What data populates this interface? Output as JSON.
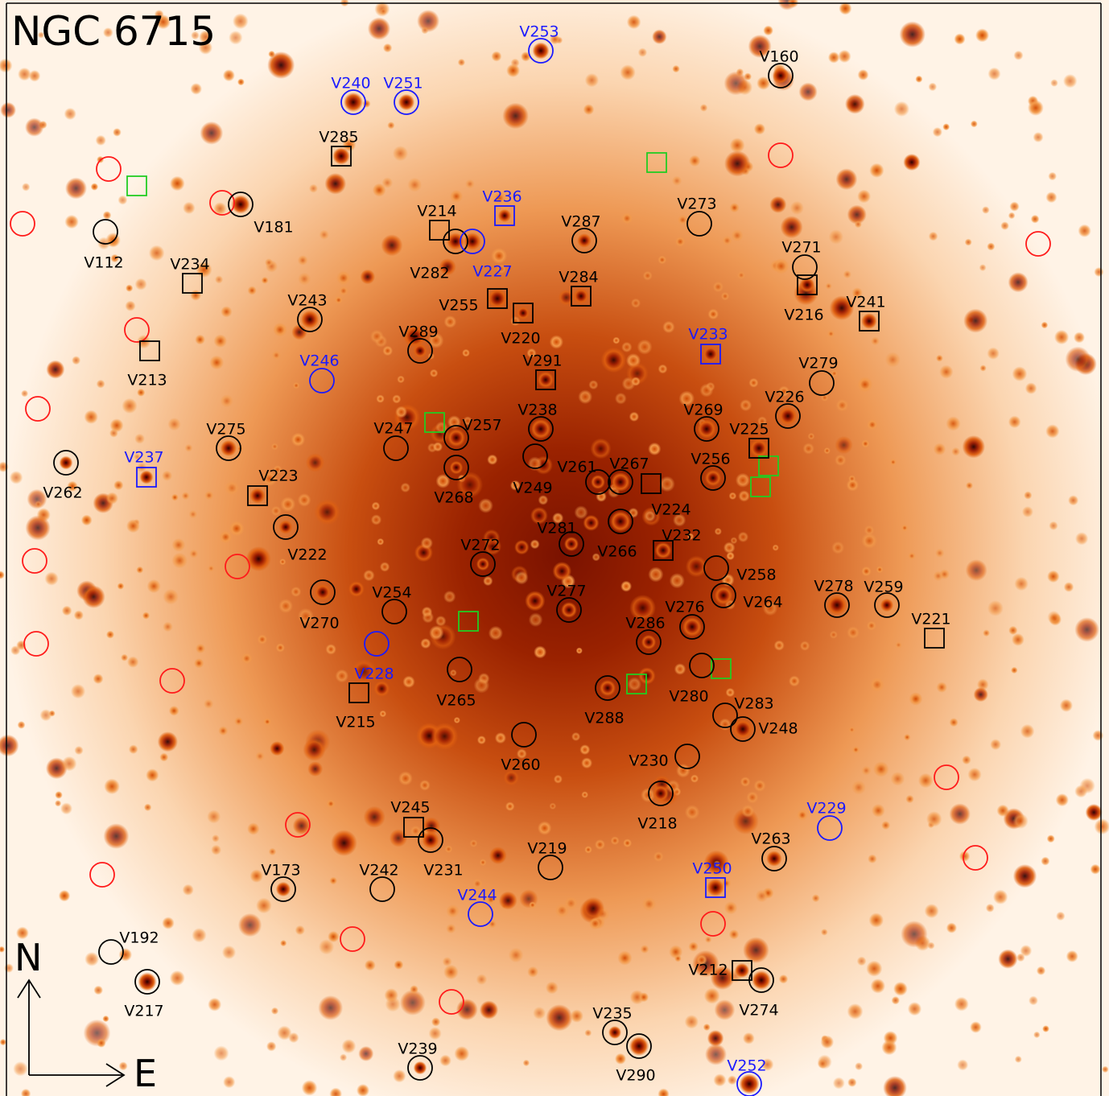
{
  "title": "NGC 6715",
  "compass": {
    "north": "N",
    "east": "E"
  },
  "colors": {
    "black": "#000000",
    "blue": "#1a1aff",
    "red": "#ff1a1a",
    "green": "#22cc22",
    "field_background": "#fff3e6",
    "core_color": "#8a1800",
    "star_color": "#c83a00"
  },
  "variables": [
    {
      "name": "V253",
      "color": "blue",
      "marker": "circle"
    },
    {
      "name": "V160",
      "color": "black",
      "marker": "circle"
    },
    {
      "name": "V240",
      "color": "blue",
      "marker": "circle"
    },
    {
      "name": "V251",
      "color": "blue",
      "marker": "circle"
    },
    {
      "name": "V285",
      "color": "black",
      "marker": "square"
    },
    {
      "name": "V236",
      "color": "blue",
      "marker": "square"
    },
    {
      "name": "V214",
      "color": "black",
      "marker": "square"
    },
    {
      "name": "V181",
      "color": "black",
      "marker": "circle"
    },
    {
      "name": "V273",
      "color": "black",
      "marker": "circle"
    },
    {
      "name": "V287",
      "color": "black",
      "marker": "circle"
    },
    {
      "name": "V112",
      "color": "black",
      "marker": "circle"
    },
    {
      "name": "V282",
      "color": "black",
      "marker": "circle"
    },
    {
      "name": "V227",
      "color": "blue",
      "marker": "circle"
    },
    {
      "name": "V271",
      "color": "black",
      "marker": "circle"
    },
    {
      "name": "V234",
      "color": "black",
      "marker": "square"
    },
    {
      "name": "V284",
      "color": "black",
      "marker": "square"
    },
    {
      "name": "V216",
      "color": "black",
      "marker": "square"
    },
    {
      "name": "V243",
      "color": "black",
      "marker": "circle"
    },
    {
      "name": "V255",
      "color": "black",
      "marker": "square"
    },
    {
      "name": "V241",
      "color": "black",
      "marker": "square"
    },
    {
      "name": "V220",
      "color": "black",
      "marker": "square"
    },
    {
      "name": "V289",
      "color": "black",
      "marker": "circle"
    },
    {
      "name": "V233",
      "color": "blue",
      "marker": "square"
    },
    {
      "name": "V213",
      "color": "black",
      "marker": "square"
    },
    {
      "name": "V246",
      "color": "blue",
      "marker": "circle"
    },
    {
      "name": "V291",
      "color": "black",
      "marker": "square"
    },
    {
      "name": "V279",
      "color": "black",
      "marker": "circle"
    },
    {
      "name": "V226",
      "color": "black",
      "marker": "circle"
    },
    {
      "name": "V238",
      "color": "black",
      "marker": "circle"
    },
    {
      "name": "V269",
      "color": "black",
      "marker": "circle"
    },
    {
      "name": "V275",
      "color": "black",
      "marker": "circle"
    },
    {
      "name": "V247",
      "color": "black",
      "marker": "circle"
    },
    {
      "name": "V257",
      "color": "black",
      "marker": "circle"
    },
    {
      "name": "V225",
      "color": "black",
      "marker": "square"
    },
    {
      "name": "V237",
      "color": "blue",
      "marker": "square"
    },
    {
      "name": "V249",
      "color": "black",
      "marker": "circle"
    },
    {
      "name": "V261",
      "color": "black",
      "marker": "circle"
    },
    {
      "name": "V267",
      "color": "black",
      "marker": "circle"
    },
    {
      "name": "V256",
      "color": "black",
      "marker": "circle"
    },
    {
      "name": "V262",
      "color": "black",
      "marker": "circle"
    },
    {
      "name": "V223",
      "color": "black",
      "marker": "square"
    },
    {
      "name": "V268",
      "color": "black",
      "marker": "circle"
    },
    {
      "name": "V224",
      "color": "black",
      "marker": "square"
    },
    {
      "name": "V281",
      "color": "black",
      "marker": "circle"
    },
    {
      "name": "V266",
      "color": "black",
      "marker": "circle"
    },
    {
      "name": "V232",
      "color": "black",
      "marker": "square"
    },
    {
      "name": "V222",
      "color": "black",
      "marker": "circle"
    },
    {
      "name": "V272",
      "color": "black",
      "marker": "circle"
    },
    {
      "name": "V258",
      "color": "black",
      "marker": "circle"
    },
    {
      "name": "V264",
      "color": "black",
      "marker": "circle"
    },
    {
      "name": "V278",
      "color": "black",
      "marker": "circle"
    },
    {
      "name": "V259",
      "color": "black",
      "marker": "circle"
    },
    {
      "name": "V254",
      "color": "black",
      "marker": "circle"
    },
    {
      "name": "V277",
      "color": "black",
      "marker": "circle"
    },
    {
      "name": "V276",
      "color": "black",
      "marker": "circle"
    },
    {
      "name": "V270",
      "color": "black",
      "marker": "circle"
    },
    {
      "name": "V286",
      "color": "black",
      "marker": "circle"
    },
    {
      "name": "V221",
      "color": "black",
      "marker": "square"
    },
    {
      "name": "V228",
      "color": "blue",
      "marker": "circle"
    },
    {
      "name": "V265",
      "color": "black",
      "marker": "circle"
    },
    {
      "name": "V280",
      "color": "black",
      "marker": "circle"
    },
    {
      "name": "V215",
      "color": "black",
      "marker": "square"
    },
    {
      "name": "V288",
      "color": "black",
      "marker": "circle"
    },
    {
      "name": "V283",
      "color": "black",
      "marker": "circle"
    },
    {
      "name": "V248",
      "color": "black",
      "marker": "circle"
    },
    {
      "name": "V260",
      "color": "black",
      "marker": "circle"
    },
    {
      "name": "V230",
      "color": "black",
      "marker": "circle"
    },
    {
      "name": "V218",
      "color": "black",
      "marker": "circle"
    },
    {
      "name": "V229",
      "color": "blue",
      "marker": "circle"
    },
    {
      "name": "V245",
      "color": "black",
      "marker": "square"
    },
    {
      "name": "V231",
      "color": "black",
      "marker": "circle"
    },
    {
      "name": "V219",
      "color": "black",
      "marker": "circle"
    },
    {
      "name": "V263",
      "color": "black",
      "marker": "circle"
    },
    {
      "name": "V173",
      "color": "black",
      "marker": "circle"
    },
    {
      "name": "V242",
      "color": "black",
      "marker": "circle"
    },
    {
      "name": "V250",
      "color": "blue",
      "marker": "square"
    },
    {
      "name": "V244",
      "color": "blue",
      "marker": "circle"
    },
    {
      "name": "V192",
      "color": "black",
      "marker": "circle"
    },
    {
      "name": "V212",
      "color": "black",
      "marker": "square"
    },
    {
      "name": "V217",
      "color": "black",
      "marker": "circle"
    },
    {
      "name": "V274",
      "color": "black",
      "marker": "circle"
    },
    {
      "name": "V235",
      "color": "black",
      "marker": "circle"
    },
    {
      "name": "V239",
      "color": "black",
      "marker": "circle"
    },
    {
      "name": "V290",
      "color": "black",
      "marker": "circle"
    },
    {
      "name": "V252",
      "color": "blue",
      "marker": "circle"
    }
  ]
}
